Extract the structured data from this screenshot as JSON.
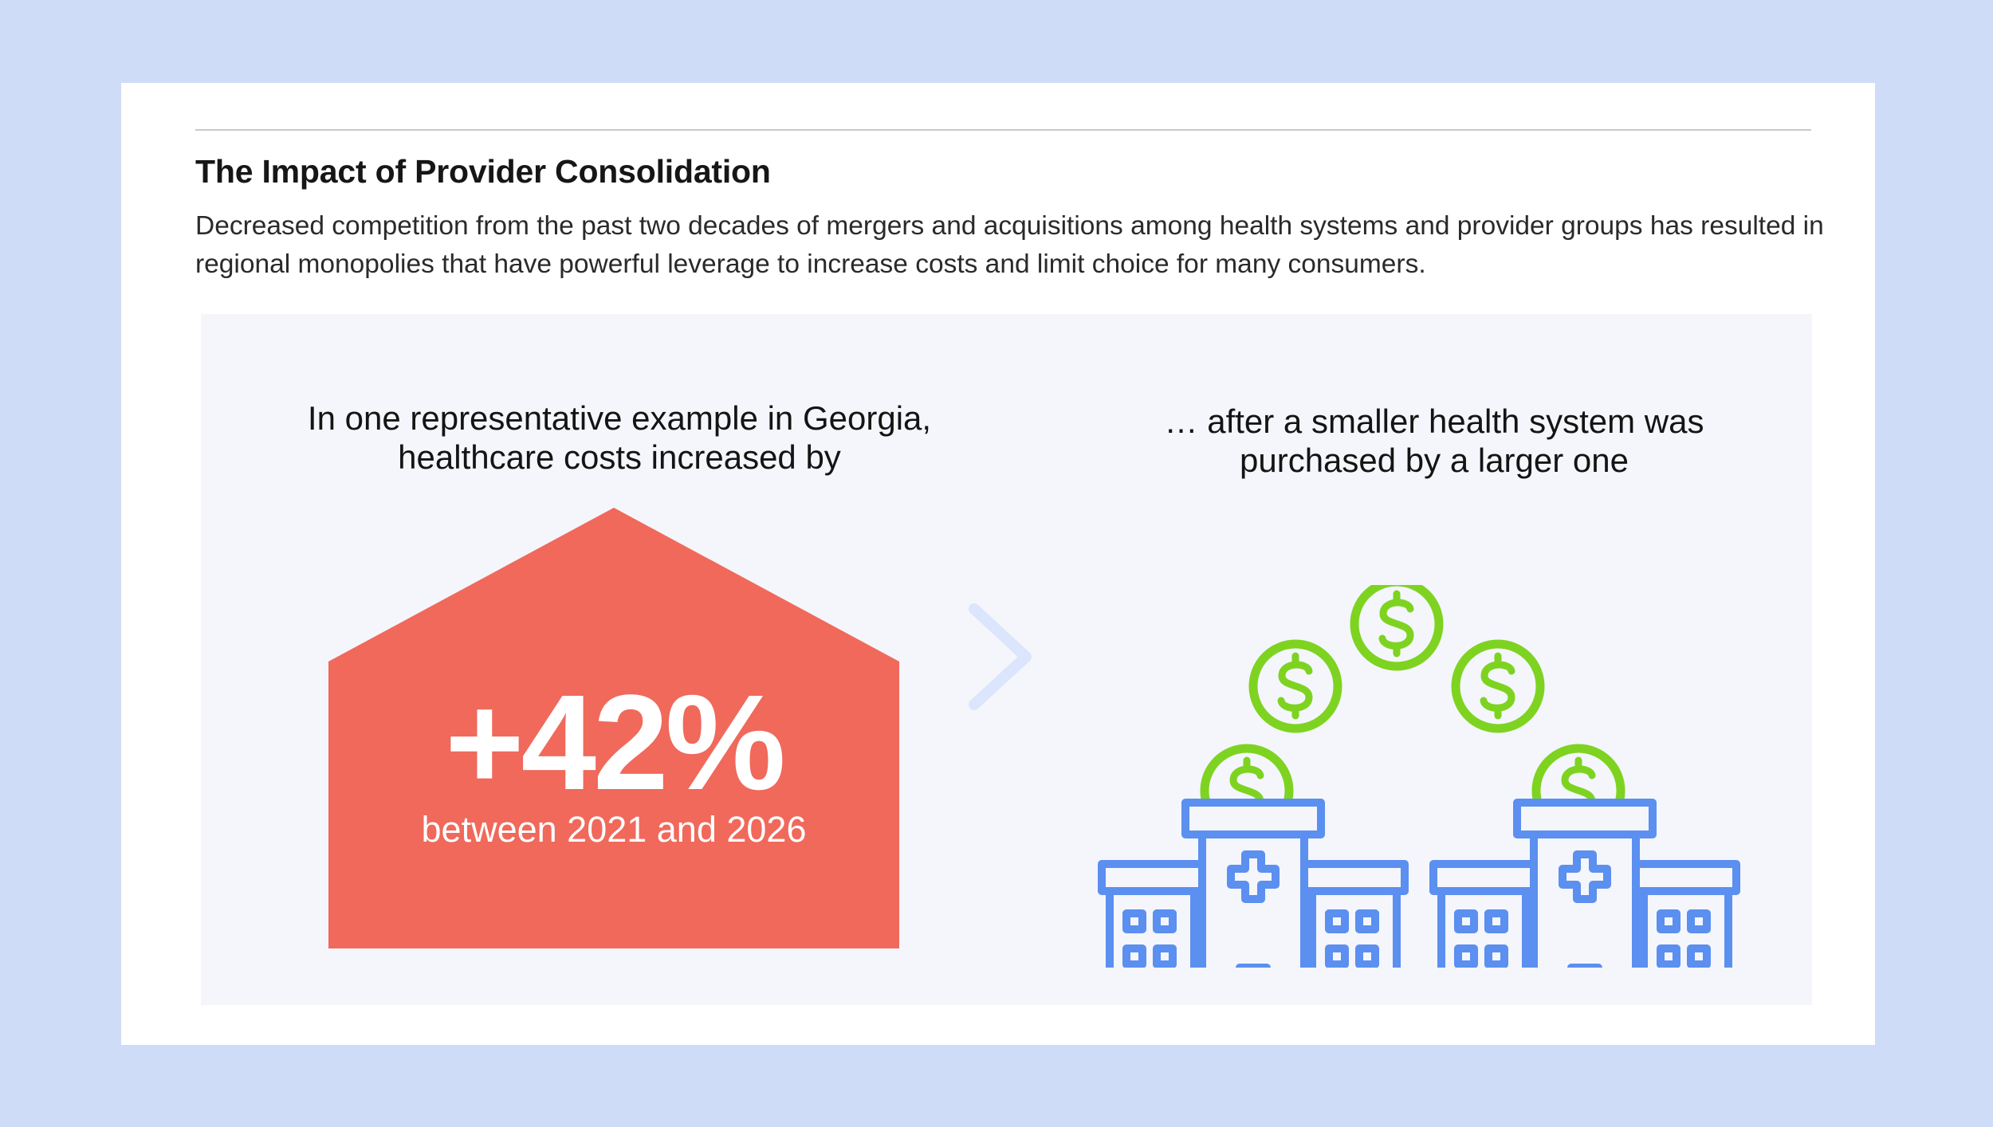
{
  "header": {
    "title": "The Impact of Provider Consolidation",
    "description": "Decreased competition from the past two decades of mergers and acquisitions among health systems and provider groups has resulted in regional monopolies that have powerful leverage to increase costs and limit choice for many consumers."
  },
  "left": {
    "caption_line1": "In one representative example in Georgia,",
    "caption_line2": "healthcare costs increased by",
    "stat_value": "+42%",
    "stat_period": "between 2021 and 2026"
  },
  "right": {
    "caption_line1": "… after a smaller health system was",
    "caption_line2": "purchased by a larger one"
  },
  "icons": {
    "arrow": "chevron-right-icon",
    "coins": "dollar-coin-icon",
    "hospitals": "hospital-building-icon"
  },
  "colors": {
    "page_background": "#cfdcf7",
    "card": "#ffffff",
    "panel": "#f4f6fb",
    "stat_house": "#f0695b",
    "building_blue": "#5b8ff0",
    "coin_green": "#7ed321",
    "chevron": "#dbe5fb"
  }
}
